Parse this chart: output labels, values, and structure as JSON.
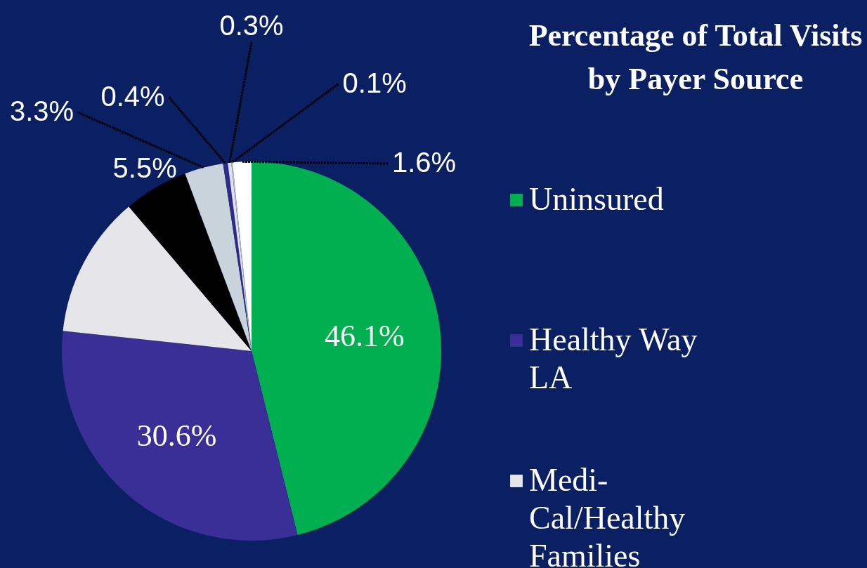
{
  "chart_data": {
    "type": "pie",
    "title": "Percentage of Total Visits by Payer Source",
    "categories": [
      "Uninsured",
      "Healthy Way LA",
      "Medi-Cal/Healthy Families",
      null,
      null,
      null,
      null,
      null,
      null
    ],
    "values": [
      46.1,
      30.6,
      12.1,
      5.5,
      3.3,
      0.4,
      0.3,
      0.1,
      1.6
    ],
    "colors": [
      "#00b050",
      "#3a2f96",
      "#e6e6ea",
      "#000000",
      "#c9d3dc",
      "#2e2a8a",
      "#e0e0ee",
      "#b0b8d0",
      "#ffffff"
    ],
    "value_labels": [
      "46.1%",
      "30.6%",
      null,
      "5.5%",
      "3.3%",
      "0.4%",
      "0.3%",
      "0.1%",
      "1.6%"
    ],
    "legend": "right"
  }
}
